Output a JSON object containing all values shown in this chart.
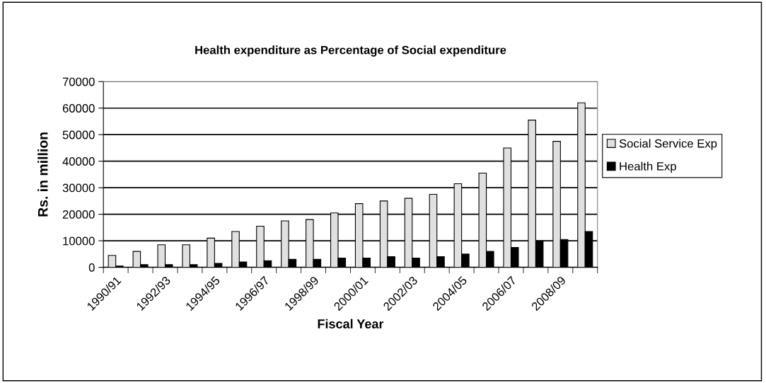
{
  "chart_data": {
    "type": "bar",
    "title": "Health expenditure as Percentage of Social expenditure",
    "xlabel": "Fiscal Year",
    "ylabel": "Rs. in million",
    "categories": [
      "1990/91",
      null,
      "1992/93",
      null,
      "1994/95",
      null,
      "1996/97",
      null,
      "1998/99",
      null,
      "2000/01",
      null,
      "2002/03",
      null,
      "2004/05",
      null,
      "2006/07",
      null,
      "2008/09",
      null
    ],
    "series": [
      {
        "name": "Social Service Exp",
        "color": "#e0e0e0",
        "values": [
          4500,
          6000,
          8500,
          8500,
          11000,
          13500,
          15500,
          17500,
          18000,
          20500,
          24000,
          25000,
          26000,
          27500,
          31500,
          35500,
          45000,
          55500,
          47500,
          62000
        ]
      },
      {
        "name": "Health Exp",
        "color": "#000000",
        "values": [
          500,
          1000,
          1000,
          1000,
          1500,
          2000,
          2500,
          3000,
          3000,
          3500,
          3500,
          4000,
          3500,
          4000,
          5000,
          6000,
          7500,
          10000,
          10500,
          13500
        ]
      }
    ],
    "ylim": [
      0,
      70000
    ],
    "yticks": [
      0,
      10000,
      20000,
      30000,
      40000,
      50000,
      60000,
      70000
    ],
    "grid": "y",
    "legend": "right"
  }
}
